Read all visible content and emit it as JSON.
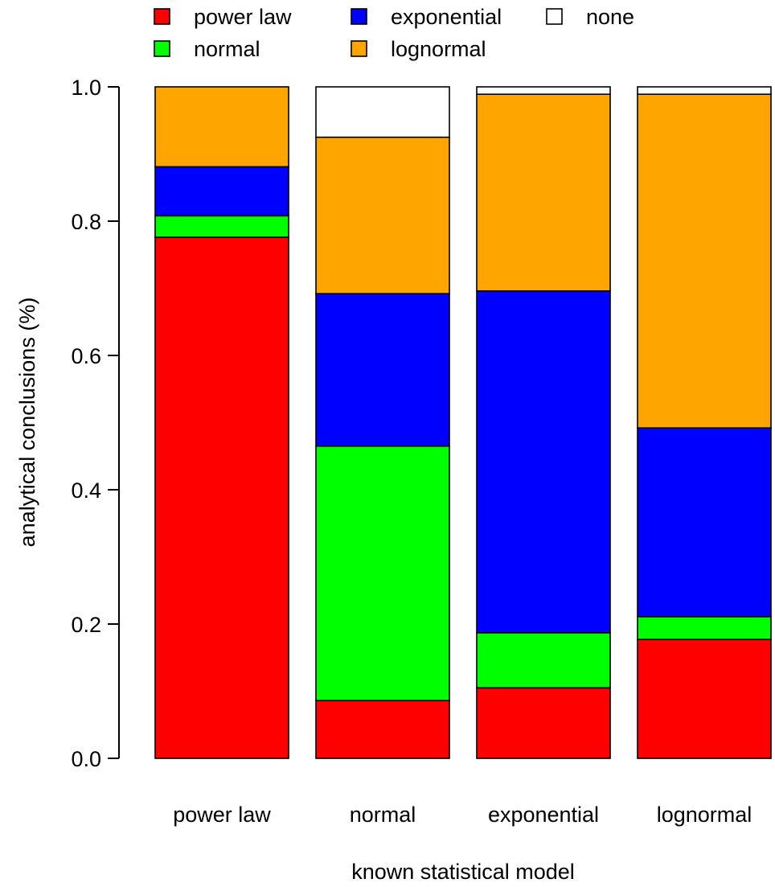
{
  "chart_data": {
    "type": "bar",
    "stacked": true,
    "title": "",
    "xlabel": "known statistical model",
    "ylabel": "analytical conclusions (%)",
    "ylim": [
      0,
      1
    ],
    "yticks": [
      "0.0",
      "0.2",
      "0.4",
      "0.6",
      "0.8",
      "1.0"
    ],
    "grid": false,
    "legend_position": "top",
    "categories": [
      "power law",
      "normal",
      "exponential",
      "lognormal"
    ],
    "series": [
      {
        "name": "power law",
        "color": "#ff0000",
        "values": [
          0.776,
          0.086,
          0.105,
          0.177
        ]
      },
      {
        "name": "normal",
        "color": "#00ff00",
        "values": [
          0.032,
          0.379,
          0.082,
          0.034
        ]
      },
      {
        "name": "exponential",
        "color": "#0000ff",
        "values": [
          0.073,
          0.227,
          0.509,
          0.281
        ]
      },
      {
        "name": "lognormal",
        "color": "#ffa500",
        "values": [
          0.119,
          0.233,
          0.293,
          0.497
        ]
      },
      {
        "name": "none",
        "color": "#ffffff",
        "values": [
          0.0,
          0.075,
          0.011,
          0.011
        ]
      }
    ],
    "legend_order": [
      "power law",
      "exponential",
      "none",
      "normal",
      "lognormal"
    ]
  }
}
